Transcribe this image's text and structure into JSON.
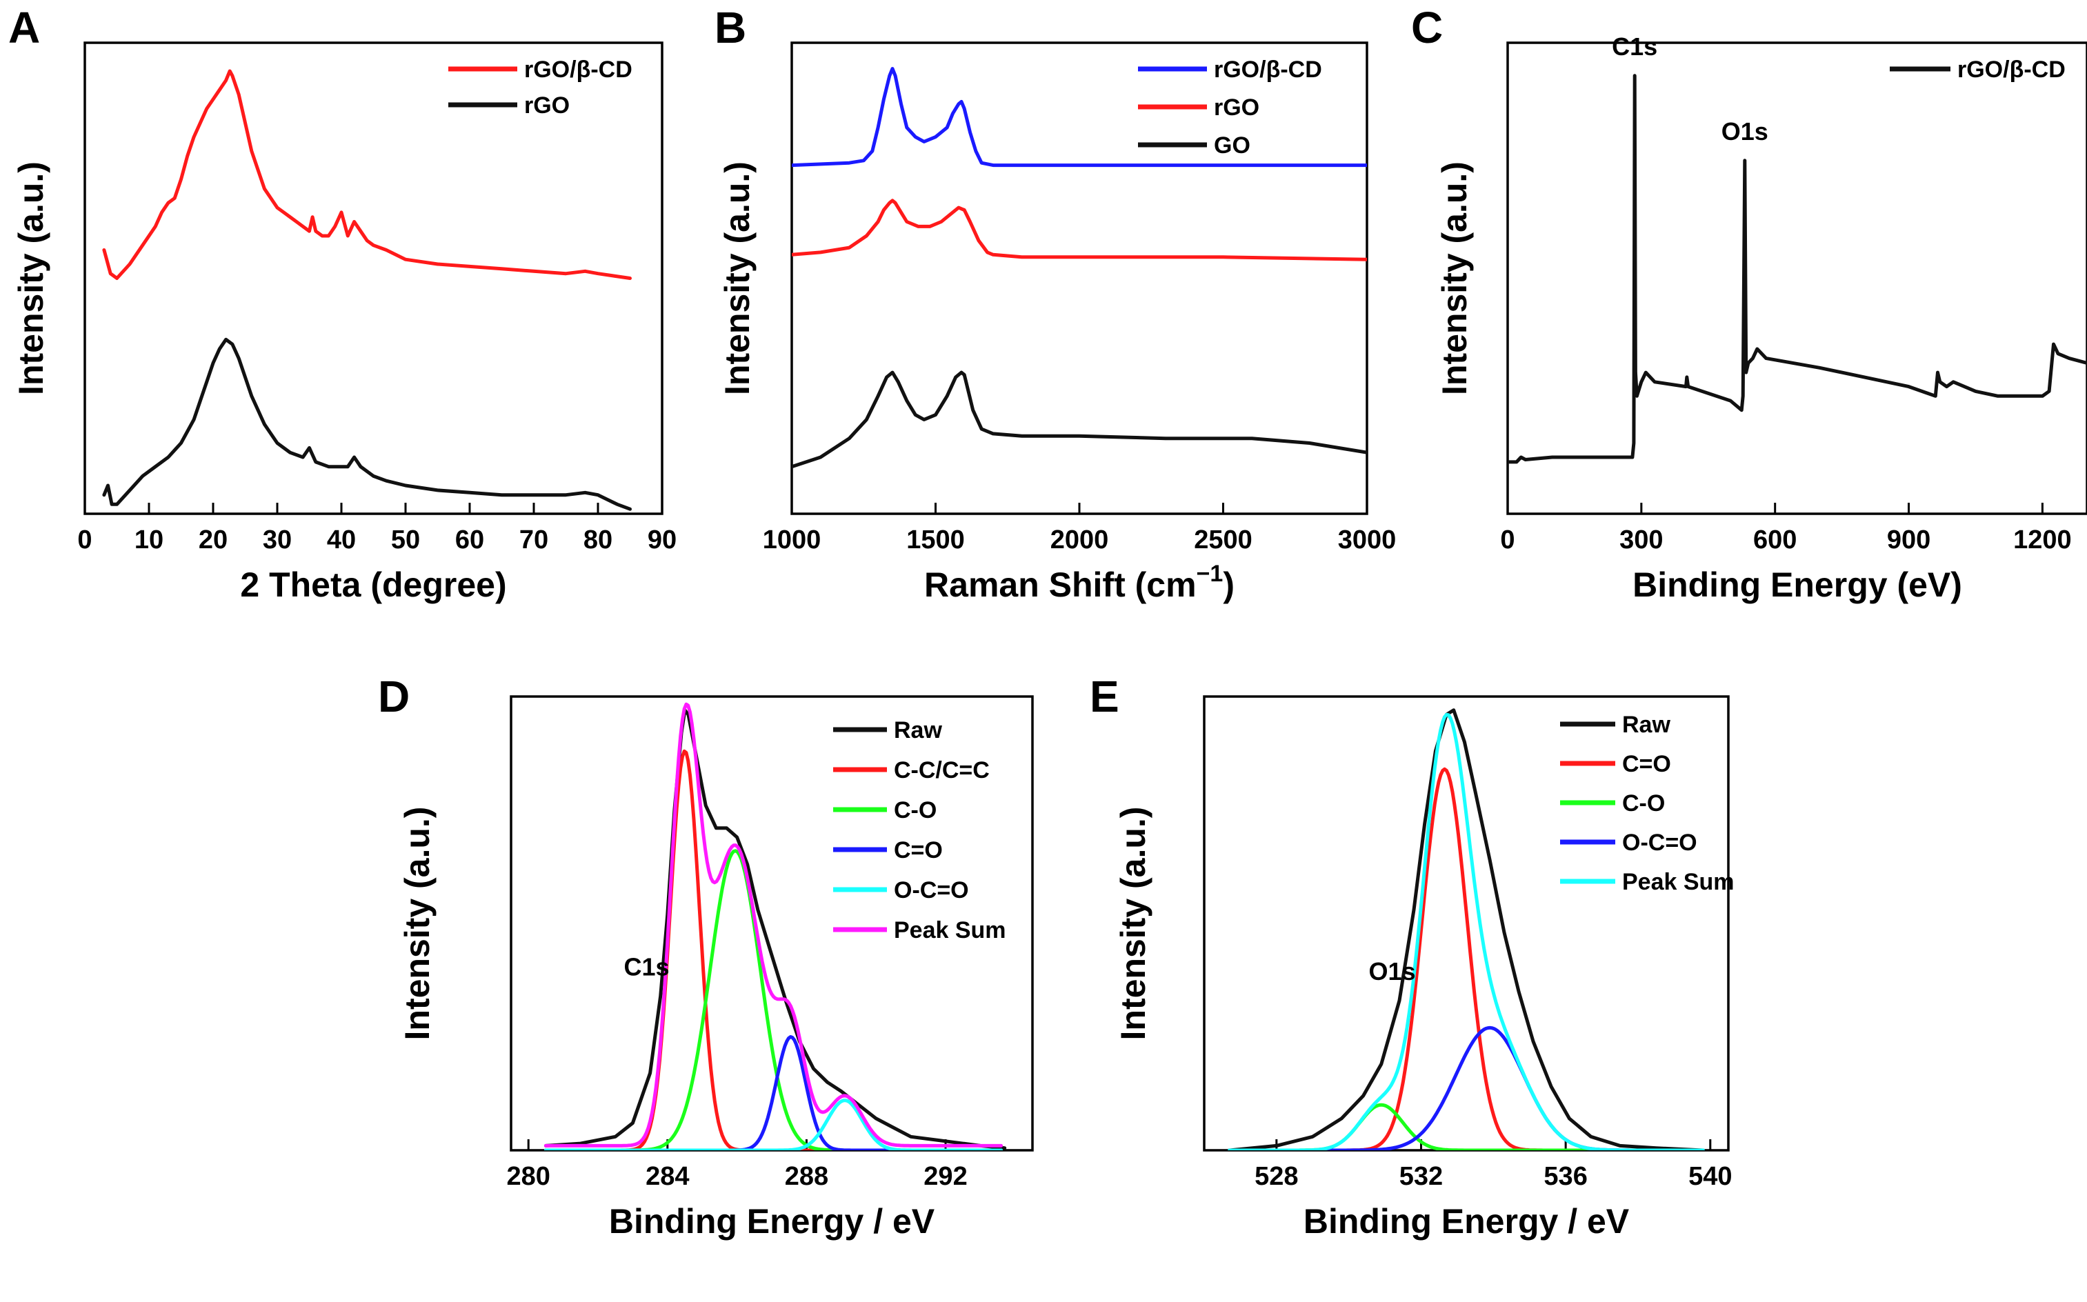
{
  "chart_data": [
    {
      "panel": "A",
      "type": "line",
      "xlabel": "2 Theta (degree)",
      "ylabel": "Intensity (a.u.)",
      "xlim": [
        0,
        90
      ],
      "xticks": [
        0,
        10,
        20,
        30,
        40,
        50,
        60,
        70,
        80,
        90
      ],
      "ylim": [
        0,
        1
      ],
      "show_yticks": false,
      "legend": "top-right",
      "series": [
        {
          "name": "rGO/β-CD",
          "color": "#ff1a1a",
          "x": [
            3,
            4,
            5,
            7,
            9,
            11,
            12,
            13,
            14,
            15,
            16,
            17,
            18,
            19,
            20,
            21,
            22,
            22.6,
            23,
            24,
            25,
            26,
            27,
            28,
            29,
            30,
            31,
            32,
            33,
            34,
            35,
            35.5,
            36,
            37,
            38,
            39,
            40,
            41,
            42,
            43,
            44,
            45,
            47,
            50,
            55,
            60,
            65,
            70,
            75,
            78,
            80,
            85
          ],
          "y": [
            0.56,
            0.51,
            0.5,
            0.53,
            0.57,
            0.61,
            0.64,
            0.66,
            0.67,
            0.71,
            0.76,
            0.8,
            0.83,
            0.86,
            0.88,
            0.9,
            0.92,
            0.94,
            0.93,
            0.89,
            0.83,
            0.77,
            0.73,
            0.69,
            0.67,
            0.65,
            0.64,
            0.63,
            0.62,
            0.61,
            0.6,
            0.63,
            0.6,
            0.59,
            0.59,
            0.61,
            0.64,
            0.59,
            0.62,
            0.6,
            0.58,
            0.57,
            0.56,
            0.54,
            0.53,
            0.525,
            0.52,
            0.515,
            0.51,
            0.515,
            0.51,
            0.5
          ]
        },
        {
          "name": "rGO",
          "color": "#111111",
          "x": [
            3,
            3.6,
            4.2,
            5,
            7,
            9,
            11,
            13,
            15,
            17,
            18,
            19,
            20,
            21,
            22,
            23,
            24,
            25,
            26,
            27,
            28,
            29,
            30,
            32,
            34,
            35,
            36,
            38,
            40,
            41,
            42,
            43,
            45,
            47,
            50,
            55,
            60,
            65,
            70,
            75,
            78,
            80,
            83,
            85
          ],
          "y": [
            0.04,
            0.06,
            0.02,
            0.02,
            0.05,
            0.08,
            0.1,
            0.12,
            0.15,
            0.2,
            0.24,
            0.28,
            0.32,
            0.35,
            0.37,
            0.36,
            0.33,
            0.29,
            0.25,
            0.22,
            0.19,
            0.17,
            0.15,
            0.13,
            0.12,
            0.14,
            0.11,
            0.1,
            0.1,
            0.1,
            0.12,
            0.1,
            0.08,
            0.07,
            0.06,
            0.05,
            0.045,
            0.04,
            0.04,
            0.04,
            0.045,
            0.04,
            0.02,
            0.01
          ]
        }
      ]
    },
    {
      "panel": "B",
      "type": "line",
      "xlabel": "Raman Shift",
      "xlabel_unit_base": "(cm",
      "xlabel_unit_sup": "−1",
      "xlabel_unit_close": ")",
      "ylabel": "Intensity (a.u.)",
      "xlim": [
        1000,
        3000
      ],
      "xticks": [
        1000,
        1500,
        2000,
        2500,
        3000
      ],
      "ylim": [
        0,
        1
      ],
      "show_yticks": false,
      "legend": "top-right",
      "series": [
        {
          "name": "rGO/β-CD",
          "color": "#1a1aff",
          "x": [
            1000,
            1200,
            1250,
            1280,
            1300,
            1320,
            1340,
            1350,
            1360,
            1380,
            1400,
            1430,
            1460,
            1500,
            1540,
            1560,
            1580,
            1590,
            1600,
            1620,
            1640,
            1660,
            1700,
            1800,
            2000,
            2500,
            3000
          ],
          "y": [
            0.74,
            0.745,
            0.75,
            0.77,
            0.82,
            0.88,
            0.93,
            0.945,
            0.93,
            0.87,
            0.82,
            0.8,
            0.79,
            0.8,
            0.82,
            0.85,
            0.87,
            0.875,
            0.86,
            0.81,
            0.77,
            0.745,
            0.74,
            0.74,
            0.74,
            0.74,
            0.74
          ]
        },
        {
          "name": "rGO",
          "color": "#ff1a1a",
          "x": [
            1000,
            1100,
            1200,
            1260,
            1300,
            1320,
            1340,
            1350,
            1360,
            1380,
            1400,
            1440,
            1480,
            1520,
            1550,
            1580,
            1600,
            1620,
            1650,
            1680,
            1700,
            1800,
            2000,
            2500,
            3000
          ],
          "y": [
            0.55,
            0.555,
            0.565,
            0.59,
            0.62,
            0.645,
            0.66,
            0.665,
            0.66,
            0.64,
            0.62,
            0.61,
            0.61,
            0.62,
            0.635,
            0.65,
            0.645,
            0.62,
            0.58,
            0.555,
            0.55,
            0.545,
            0.545,
            0.545,
            0.54
          ]
        },
        {
          "name": "GO",
          "color": "#111111",
          "x": [
            1000,
            1100,
            1200,
            1260,
            1300,
            1330,
            1350,
            1370,
            1400,
            1430,
            1460,
            1500,
            1540,
            1570,
            1590,
            1600,
            1610,
            1630,
            1660,
            1700,
            1800,
            2000,
            2300,
            2600,
            2800,
            3000
          ],
          "y": [
            0.1,
            0.12,
            0.16,
            0.2,
            0.25,
            0.29,
            0.3,
            0.28,
            0.24,
            0.21,
            0.2,
            0.21,
            0.25,
            0.29,
            0.3,
            0.295,
            0.27,
            0.22,
            0.18,
            0.17,
            0.165,
            0.165,
            0.16,
            0.16,
            0.15,
            0.13
          ]
        }
      ]
    },
    {
      "panel": "C",
      "type": "line",
      "xlabel": "Binding Energy (eV)",
      "ylabel": "Intensity (a.u.)",
      "xlim": [
        0,
        1300
      ],
      "xticks": [
        0,
        300,
        600,
        900,
        1200
      ],
      "ylim": [
        0,
        1
      ],
      "show_yticks": false,
      "legend": "top-right",
      "annotations": [
        {
          "text": "C1s",
          "x": 285
        },
        {
          "text": "O1s",
          "x": 532
        }
      ],
      "series": [
        {
          "name": "rGO/β-CD",
          "color": "#111111",
          "x": [
            0,
            20,
            30,
            40,
            100,
            200,
            280,
            283,
            285,
            287,
            290,
            300,
            310,
            330,
            400,
            402,
            405,
            500,
            525,
            528,
            532,
            535,
            540,
            550,
            560,
            580,
            700,
            900,
            960,
            965,
            970,
            985,
            1000,
            1050,
            1100,
            1200,
            1215,
            1225,
            1235,
            1260,
            1300
          ],
          "y": [
            0.11,
            0.11,
            0.12,
            0.115,
            0.12,
            0.12,
            0.12,
            0.15,
            0.93,
            0.3,
            0.25,
            0.28,
            0.3,
            0.28,
            0.27,
            0.29,
            0.27,
            0.24,
            0.22,
            0.25,
            0.75,
            0.3,
            0.32,
            0.33,
            0.35,
            0.33,
            0.31,
            0.27,
            0.25,
            0.3,
            0.28,
            0.27,
            0.28,
            0.26,
            0.25,
            0.25,
            0.26,
            0.36,
            0.34,
            0.33,
            0.32
          ]
        }
      ]
    },
    {
      "panel": "D",
      "type": "line",
      "xlabel": "Binding Energy / eV",
      "ylabel": "Intensity (a.u.)",
      "xlim": [
        279.5,
        294.5
      ],
      "xticks": [
        280,
        284,
        288,
        292
      ],
      "ylim": [
        0,
        1
      ],
      "show_yticks": false,
      "legend": "top-right",
      "annotations": [
        {
          "text": "C1s",
          "x": 283.4
        }
      ],
      "series": [
        {
          "name": "Raw",
          "color": "#111111",
          "x": [
            280.5,
            281.5,
            282.5,
            283,
            283.5,
            283.8,
            284,
            284.2,
            284.4,
            284.5,
            284.6,
            284.8,
            285.1,
            285.4,
            285.7,
            286,
            286.3,
            286.6,
            287,
            287.4,
            287.8,
            288.2,
            288.6,
            289,
            289.5,
            290,
            290.5,
            291,
            292,
            293,
            293.7
          ],
          "y": [
            0.01,
            0.015,
            0.03,
            0.06,
            0.17,
            0.34,
            0.52,
            0.75,
            0.92,
            0.97,
            0.96,
            0.88,
            0.76,
            0.71,
            0.71,
            0.69,
            0.63,
            0.53,
            0.43,
            0.33,
            0.24,
            0.18,
            0.15,
            0.13,
            0.1,
            0.07,
            0.05,
            0.03,
            0.02,
            0.01,
            0.005
          ]
        },
        {
          "name": "C-C/C=C",
          "color": "#ff1a1a",
          "gauss": {
            "a": 0.88,
            "mu": 284.5,
            "sigma": 0.42
          }
        },
        {
          "name": "C-O",
          "color": "#1aff1a",
          "gauss": {
            "a": 0.66,
            "mu": 285.95,
            "sigma": 0.72
          }
        },
        {
          "name": "C=O",
          "color": "#1a1aff",
          "gauss": {
            "a": 0.25,
            "mu": 287.55,
            "sigma": 0.42
          }
        },
        {
          "name": "O-C=O",
          "color": "#1affff",
          "gauss": {
            "a": 0.11,
            "mu": 289.1,
            "sigma": 0.5
          }
        },
        {
          "name": "Peak Sum",
          "color": "#ff1aff",
          "sum_of": [
            1,
            2,
            3,
            4
          ],
          "offset": 0.01
        }
      ],
      "xrange_curves": [
        280.5,
        293.6
      ]
    },
    {
      "panel": "E",
      "type": "line",
      "xlabel": "Binding Energy / eV",
      "ylabel": "Intensity (a.u.)",
      "xlim": [
        526,
        540.5
      ],
      "xticks": [
        528,
        532,
        536,
        540
      ],
      "ylim": [
        0,
        1
      ],
      "show_yticks": false,
      "legend": "top-right",
      "annotations": [
        {
          "text": "O1s",
          "x": 531.2
        }
      ],
      "series": [
        {
          "name": "Raw",
          "color": "#111111",
          "x": [
            526.7,
            528,
            529,
            529.8,
            530.4,
            530.9,
            531.4,
            531.8,
            532.1,
            532.4,
            532.7,
            532.9,
            533.2,
            533.5,
            533.9,
            534.3,
            534.7,
            535.1,
            535.6,
            536.1,
            536.7,
            537.5,
            538.5,
            539.8
          ],
          "y": [
            0.0,
            0.01,
            0.03,
            0.07,
            0.12,
            0.19,
            0.33,
            0.53,
            0.72,
            0.88,
            0.96,
            0.97,
            0.9,
            0.79,
            0.64,
            0.48,
            0.35,
            0.24,
            0.14,
            0.07,
            0.03,
            0.01,
            0.005,
            0.0
          ]
        },
        {
          "name": "C=O",
          "color": "#ff1a1a",
          "gauss": {
            "a": 0.84,
            "mu": 532.65,
            "sigma": 0.62
          }
        },
        {
          "name": "C-O",
          "color": "#1aff1a",
          "gauss": {
            "a": 0.1,
            "mu": 530.9,
            "sigma": 0.6
          }
        },
        {
          "name": "O-C=O",
          "color": "#1a1aff",
          "gauss": {
            "a": 0.27,
            "mu": 533.9,
            "sigma": 0.95
          }
        },
        {
          "name": "Peak Sum",
          "color": "#1affff",
          "sum_of": [
            1,
            2,
            3
          ],
          "offset": 0.0
        }
      ],
      "xrange_curves": [
        526.7,
        539.8
      ]
    }
  ]
}
